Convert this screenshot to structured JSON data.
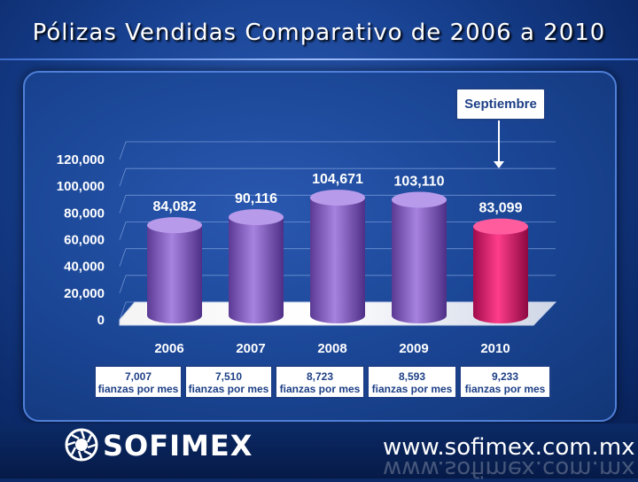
{
  "title": "Pólizas Vendidas Comparativo de 2006 a 2010",
  "callout": "Septiembre",
  "colors": {
    "bar": "#8a5fc4",
    "highlight": "#e0136b",
    "background": "#17408f"
  },
  "chart_data": {
    "type": "bar",
    "categories": [
      "2006",
      "2007",
      "2008",
      "2009",
      "2010"
    ],
    "values": [
      84082,
      90116,
      104671,
      103110,
      83099
    ],
    "value_labels": [
      "84,082",
      "90,116",
      "104,671",
      "103,110",
      "83,099"
    ],
    "y_ticks": [
      "0",
      "20,000",
      "40,000",
      "60,000",
      "80,000",
      "100,000",
      "120,000"
    ],
    "ylim": [
      0,
      120000
    ],
    "highlight_category": "2010",
    "grid": true
  },
  "fianzas": [
    {
      "value": "7,007",
      "label": "fianzas por mes"
    },
    {
      "value": "7,510",
      "label": "fianzas por mes"
    },
    {
      "value": "8,723",
      "label": "fianzas por mes"
    },
    {
      "value": "8,593",
      "label": "fianzas por mes"
    },
    {
      "value": "9,233",
      "label": "fianzas por mes"
    }
  ],
  "footer": {
    "brand": "SOFIMEX",
    "url": "www.sofimex.com.mx"
  }
}
